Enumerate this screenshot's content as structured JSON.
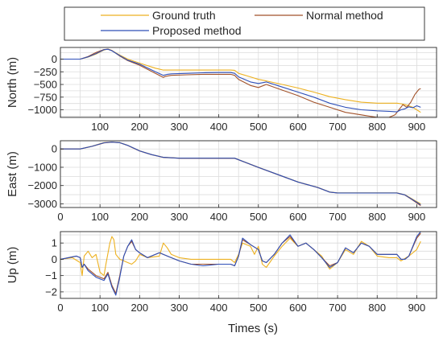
{
  "chart_data": {
    "type": "line",
    "xlabel": "Times (s)",
    "legend": {
      "placement": "top",
      "entries": [
        {
          "name": "Ground truth",
          "color": "#EDB120"
        },
        {
          "name": "Normal method",
          "color": "#A2522A"
        },
        {
          "name": "Proposed method",
          "color": "#2E4FB8"
        }
      ]
    },
    "xlim": [
      0,
      950
    ],
    "xticks": [
      0,
      100,
      200,
      300,
      400,
      500,
      600,
      700,
      800,
      900
    ],
    "panels": [
      {
        "ylabel": "North (m)",
        "ylim": [
          -1150,
          230
        ],
        "yticks": [
          0,
          -250,
          -500,
          -750,
          -1000
        ],
        "show_xtick_labels": false,
        "series": [
          {
            "name": "Ground truth",
            "color": "#EDB120",
            "x": [
              0,
              50,
              70,
              90,
              110,
              120,
              130,
              150,
              170,
              200,
              240,
              260,
              280,
              320,
              360,
              400,
              430,
              440,
              450,
              480,
              500,
              520,
              560,
              600,
              640,
              680,
              720,
              760,
              800,
              830,
              850,
              860,
              870,
              880,
              890,
              900,
              910
            ],
            "y": [
              0,
              0,
              40,
              100,
              180,
              200,
              170,
              80,
              0,
              -80,
              -180,
              -215,
              -215,
              -215,
              -215,
              -215,
              -215,
              -220,
              -280,
              -350,
              -400,
              -430,
              -500,
              -570,
              -650,
              -740,
              -800,
              -850,
              -870,
              -870,
              -870,
              -880,
              -900,
              -920,
              -950,
              -1000,
              -1050
            ]
          },
          {
            "name": "Normal method",
            "color": "#A2522A",
            "x": [
              0,
              50,
              70,
              90,
              110,
              120,
              130,
              150,
              170,
              200,
              240,
              260,
              265,
              280,
              320,
              360,
              400,
              430,
              440,
              450,
              480,
              500,
              520,
              560,
              600,
              640,
              680,
              720,
              760,
              800,
              830,
              845,
              855,
              865,
              875,
              885,
              895,
              900,
              905,
              910
            ],
            "y": [
              0,
              0,
              50,
              130,
              190,
              195,
              170,
              60,
              -30,
              -120,
              -280,
              -360,
              -340,
              -320,
              -310,
              -300,
              -300,
              -300,
              -320,
              -400,
              -520,
              -560,
              -500,
              -610,
              -720,
              -850,
              -950,
              -1050,
              -1100,
              -1150,
              -1150,
              -1100,
              -1000,
              -900,
              -950,
              -850,
              -700,
              -650,
              -600,
              -580
            ]
          },
          {
            "name": "Proposed method",
            "color": "#2E4FB8",
            "x": [
              0,
              50,
              70,
              90,
              110,
              120,
              130,
              150,
              170,
              200,
              240,
              260,
              270,
              280,
              320,
              360,
              400,
              430,
              440,
              450,
              480,
              500,
              520,
              560,
              600,
              640,
              680,
              720,
              760,
              800,
              830,
              850,
              860,
              870,
              880,
              890,
              900,
              910
            ],
            "y": [
              0,
              0,
              45,
              110,
              185,
              195,
              165,
              70,
              -20,
              -100,
              -250,
              -320,
              -300,
              -290,
              -280,
              -270,
              -265,
              -265,
              -280,
              -350,
              -450,
              -480,
              -450,
              -550,
              -650,
              -750,
              -870,
              -950,
              -1000,
              -1020,
              -1030,
              -1040,
              -1000,
              -980,
              -940,
              -960,
              -920,
              -950
            ]
          }
        ]
      },
      {
        "ylabel": "East (m)",
        "ylim": [
          -3200,
          450
        ],
        "yticks": [
          0,
          -1000,
          -2000,
          -3000
        ],
        "show_xtick_labels": true,
        "series": [
          {
            "name": "Ground truth",
            "color": "#EDB120",
            "x": [
              0,
              50,
              80,
              110,
              130,
              150,
              170,
              190,
              200,
              230,
              260,
              300,
              350,
              400,
              440,
              470,
              500,
              550,
              600,
              650,
              680,
              700,
              750,
              800,
              850,
              870,
              890,
              910
            ],
            "y": [
              0,
              0,
              150,
              350,
              380,
              350,
              200,
              0,
              -100,
              -300,
              -450,
              -500,
              -500,
              -500,
              -500,
              -750,
              -1000,
              -1400,
              -1800,
              -2100,
              -2350,
              -2400,
              -2400,
              -2400,
              -2400,
              -2500,
              -2750,
              -3000
            ]
          },
          {
            "name": "Normal method",
            "color": "#A2522A",
            "x": [
              0,
              50,
              80,
              110,
              130,
              150,
              170,
              190,
              200,
              230,
              260,
              300,
              350,
              400,
              440,
              470,
              500,
              550,
              600,
              650,
              680,
              700,
              750,
              800,
              850,
              870,
              890,
              910
            ],
            "y": [
              0,
              0,
              140,
              330,
              370,
              340,
              190,
              -10,
              -110,
              -310,
              -460,
              -510,
              -510,
              -510,
              -510,
              -760,
              -1010,
              -1410,
              -1810,
              -2110,
              -2360,
              -2410,
              -2410,
              -2410,
              -2410,
              -2520,
              -2800,
              -3100
            ]
          },
          {
            "name": "Proposed method",
            "color": "#2E4FB8",
            "x": [
              0,
              50,
              80,
              110,
              130,
              150,
              170,
              190,
              200,
              230,
              260,
              300,
              350,
              400,
              440,
              470,
              500,
              550,
              600,
              650,
              680,
              700,
              750,
              800,
              850,
              870,
              890,
              910
            ],
            "y": [
              0,
              0,
              145,
              340,
              375,
              345,
              195,
              -5,
              -105,
              -305,
              -455,
              -505,
              -505,
              -505,
              -505,
              -755,
              -1005,
              -1405,
              -1805,
              -2105,
              -2355,
              -2405,
              -2405,
              -2405,
              -2405,
              -2510,
              -2780,
              -3050
            ]
          }
        ]
      },
      {
        "ylabel": "Up (m)",
        "ylim": [
          -2.4,
          1.7
        ],
        "yticks": [
          1,
          0,
          -1,
          -2
        ],
        "show_xtick_labels": true,
        "series": [
          {
            "name": "Ground truth",
            "color": "#EDB120",
            "x": [
              0,
              30,
              50,
              55,
              60,
              70,
              80,
              90,
              100,
              110,
              115,
              125,
              130,
              135,
              140,
              150,
              160,
              170,
              180,
              190,
              200,
              220,
              250,
              260,
              270,
              280,
              300,
              330,
              360,
              400,
              430,
              440,
              450,
              460,
              480,
              490,
              500,
              510,
              520,
              540,
              560,
              580,
              600,
              620,
              640,
              660,
              680,
              700,
              720,
              740,
              760,
              780,
              800,
              830,
              850,
              860,
              880,
              900,
              910
            ],
            "y": [
              0,
              0.1,
              -0.2,
              -1.0,
              0.2,
              0.5,
              0.1,
              0.3,
              -0.8,
              -1.0,
              -0.3,
              1.0,
              1.4,
              1.2,
              0.3,
              0.0,
              -0.1,
              -0.2,
              -0.3,
              -0.1,
              0.3,
              0.1,
              0.2,
              1.0,
              0.7,
              0.3,
              0.1,
              0.0,
              0.0,
              0.0,
              0.0,
              -0.2,
              0.3,
              1.0,
              0.8,
              0.3,
              0.8,
              -0.3,
              -0.5,
              0.2,
              0.8,
              1.3,
              0.8,
              1.0,
              0.6,
              0.2,
              -0.6,
              -0.2,
              0.6,
              0.3,
              1.1,
              0.8,
              0.2,
              0.1,
              0.1,
              -0.1,
              0.2,
              0.6,
              1.1
            ]
          },
          {
            "name": "Normal method",
            "color": "#A2522A",
            "x": [
              0,
              40,
              50,
              55,
              60,
              70,
              80,
              90,
              100,
              110,
              120,
              130,
              140,
              150,
              160,
              170,
              180,
              190,
              200,
              220,
              250,
              270,
              300,
              330,
              360,
              400,
              430,
              440,
              450,
              460,
              480,
              500,
              510,
              520,
              540,
              560,
              580,
              600,
              620,
              640,
              660,
              680,
              700,
              720,
              740,
              760,
              780,
              800,
              830,
              850,
              860,
              870,
              880,
              900,
              910
            ],
            "y": [
              0,
              0.2,
              0.1,
              -0.5,
              -0.3,
              -0.6,
              -0.8,
              -1.0,
              -1.1,
              -1.2,
              -0.8,
              -1.6,
              -2.1,
              -1.0,
              0.2,
              0.8,
              1.1,
              0.6,
              0.4,
              0.1,
              0.4,
              0.2,
              -0.1,
              -0.3,
              -0.3,
              -0.3,
              -0.3,
              -0.4,
              0.2,
              1.2,
              0.9,
              0.6,
              -0.1,
              -0.2,
              0.3,
              1.0,
              1.4,
              0.8,
              1.0,
              0.6,
              0.1,
              -0.4,
              -0.2,
              0.7,
              0.4,
              1.0,
              0.8,
              0.3,
              0.3,
              0.3,
              0.0,
              0.0,
              0.2,
              1.3,
              1.6
            ]
          },
          {
            "name": "Proposed method",
            "color": "#2E4FB8",
            "x": [
              0,
              40,
              50,
              55,
              60,
              70,
              80,
              90,
              100,
              110,
              120,
              130,
              140,
              150,
              160,
              170,
              180,
              190,
              200,
              220,
              250,
              270,
              300,
              330,
              360,
              400,
              430,
              440,
              450,
              460,
              480,
              500,
              510,
              520,
              540,
              560,
              580,
              600,
              620,
              640,
              660,
              680,
              700,
              720,
              740,
              760,
              780,
              800,
              830,
              850,
              860,
              870,
              880,
              900,
              910
            ],
            "y": [
              0,
              0.2,
              0.1,
              -0.5,
              -0.3,
              -0.7,
              -0.9,
              -1.1,
              -1.2,
              -1.3,
              -0.9,
              -1.7,
              -2.2,
              -1.1,
              0.2,
              0.8,
              1.2,
              0.6,
              0.4,
              0.1,
              0.4,
              0.2,
              -0.1,
              -0.3,
              -0.4,
              -0.3,
              -0.3,
              -0.4,
              0.2,
              1.3,
              0.9,
              0.6,
              -0.1,
              -0.2,
              0.3,
              1.0,
              1.5,
              0.8,
              1.0,
              0.6,
              0.1,
              -0.5,
              -0.2,
              0.7,
              0.4,
              1.0,
              0.8,
              0.3,
              0.3,
              0.3,
              0.0,
              0.0,
              0.2,
              1.4,
              1.7
            ]
          }
        ]
      }
    ]
  }
}
